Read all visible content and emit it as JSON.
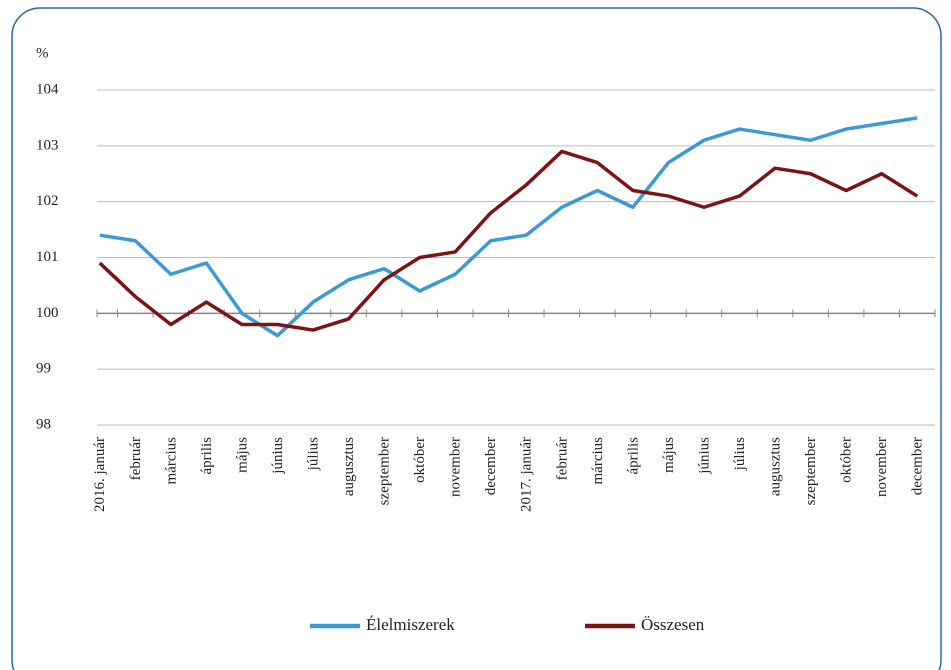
{
  "chart_data": {
    "type": "line",
    "y_axis_label": "%",
    "categories": [
      "2016. január",
      "február",
      "március",
      "április",
      "május",
      "június",
      "július",
      "augusztus",
      "szeptember",
      "október",
      "november",
      "december",
      "2017. január",
      "február",
      "március",
      "április",
      "május",
      "június",
      "július",
      "augusztus",
      "szeptember",
      "október",
      "november",
      "december"
    ],
    "series": [
      {
        "name": "Élelmiszerek",
        "color": "#3a9ad4",
        "values": [
          101.4,
          101.3,
          100.7,
          100.9,
          100.0,
          99.6,
          100.2,
          100.6,
          100.8,
          100.4,
          100.7,
          101.3,
          101.4,
          101.9,
          102.2,
          101.9,
          102.7,
          103.1,
          103.3,
          103.2,
          103.1,
          103.3,
          103.4,
          103.5
        ]
      },
      {
        "name": "Összesen",
        "color": "#7b1416",
        "values": [
          100.9,
          100.3,
          99.8,
          100.2,
          99.8,
          99.8,
          99.7,
          99.9,
          100.6,
          101.0,
          101.1,
          101.8,
          102.3,
          102.9,
          102.7,
          102.2,
          102.1,
          101.9,
          102.1,
          102.6,
          102.5,
          102.2,
          102.5,
          102.1
        ]
      }
    ],
    "ylim": [
      98,
      104
    ],
    "yticks": [
      98,
      99,
      100,
      101,
      102,
      103,
      104
    ],
    "grid": true,
    "legend": "bottom"
  }
}
